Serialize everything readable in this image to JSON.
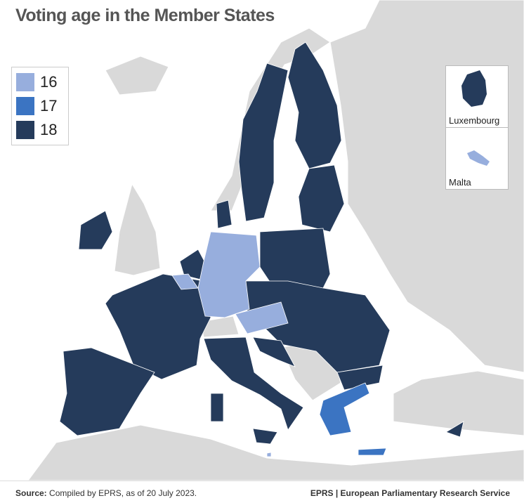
{
  "title": "Voting age in the Member States",
  "legend": [
    {
      "value": 16,
      "color": "#97aedd"
    },
    {
      "value": 17,
      "color": "#3b74c2"
    },
    {
      "value": 18,
      "color": "#253b5b"
    }
  ],
  "insets": [
    "Luxembourg",
    "Malta"
  ],
  "source": {
    "label": "Source:",
    "text": "Compiled by EPRS, as of 20 July 2023."
  },
  "publisher": {
    "short": "EPRS",
    "text": "| European Parliamentary Research Service"
  }
}
